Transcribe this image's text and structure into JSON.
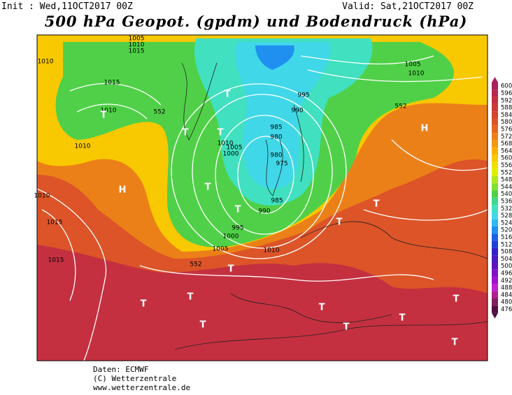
{
  "header": {
    "init": "Init : Wed,11OCT2017 00Z",
    "valid": "Valid: Sat,21OCT2017 00Z",
    "title": "500 hPa Geopot. (gpdm) und Bodendruck (hPa)"
  },
  "colorbar": {
    "levels": [
      600,
      596,
      592,
      588,
      584,
      580,
      576,
      572,
      568,
      564,
      560,
      556,
      552,
      548,
      544,
      540,
      536,
      532,
      528,
      524,
      520,
      516,
      512,
      508,
      504,
      500,
      496,
      492,
      488,
      484,
      480,
      476
    ],
    "colors": [
      "#a8205c",
      "#b82850",
      "#c43040",
      "#cc3838",
      "#d44430",
      "#dc5428",
      "#e46820",
      "#ec8018",
      "#f09810",
      "#f8b000",
      "#f8c800",
      "#f0e000",
      "#e0f000",
      "#b0e820",
      "#80e030",
      "#50d048",
      "#40d890",
      "#40e0c0",
      "#40d8e8",
      "#30b8f0",
      "#2090f0",
      "#2060e8",
      "#2040d8",
      "#3020c8",
      "#4818c0",
      "#6010c0",
      "#8010c8",
      "#a010d0",
      "#c020d0",
      "#b02090",
      "#802060",
      "#501040"
    ]
  },
  "map_labels": [
    "1005",
    "1010",
    "1015",
    "1010",
    "1015",
    "1010",
    "552",
    "T",
    "T",
    "T",
    "T",
    "1010",
    "1005",
    "1000",
    "995",
    "990",
    "985",
    "980",
    "980",
    "975",
    "985",
    "990",
    "995",
    "1000",
    "1005",
    "1010",
    "1005",
    "1010",
    "552",
    "H",
    "552",
    "H",
    "T",
    "T",
    "T",
    "T",
    "T",
    "T",
    "T",
    "1015",
    "1010",
    "1015",
    "1010",
    "T",
    "T",
    "T",
    "T",
    "T",
    "T"
  ],
  "footer": {
    "source": "Daten: ECMWF",
    "copyright": "(C) Wetterzentrale",
    "url": "www.wetterzentrale.de"
  }
}
